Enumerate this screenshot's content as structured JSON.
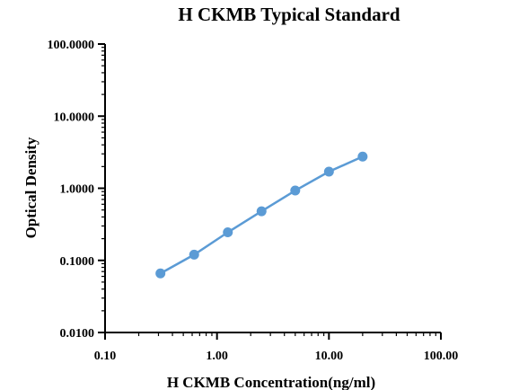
{
  "chart_data": {
    "type": "line",
    "title": "H CKMB Typical Standard",
    "xlabel": "H CKMB Concentration(ng/ml)",
    "ylabel": "Optical Density",
    "xscale": "log",
    "yscale": "log",
    "xlim": [
      0.1,
      100
    ],
    "ylim": [
      0.01,
      100
    ],
    "x_ticks": [
      0.1,
      1,
      10,
      100
    ],
    "x_tick_labels": [
      "0.10",
      "1.00",
      "10.00",
      "100.00"
    ],
    "y_ticks": [
      0.01,
      0.1,
      1,
      10,
      100
    ],
    "y_tick_labels": [
      "0.0100",
      "0.1000",
      "1.0000",
      "10.0000",
      "100.0000"
    ],
    "grid": false,
    "legend": "none",
    "series": [
      {
        "color": "#5b9bd5",
        "x": [
          0.3125,
          0.625,
          1.25,
          2.5,
          5,
          10,
          20
        ],
        "y": [
          0.066,
          0.12,
          0.245,
          0.48,
          0.93,
          1.7,
          2.75
        ]
      }
    ]
  }
}
